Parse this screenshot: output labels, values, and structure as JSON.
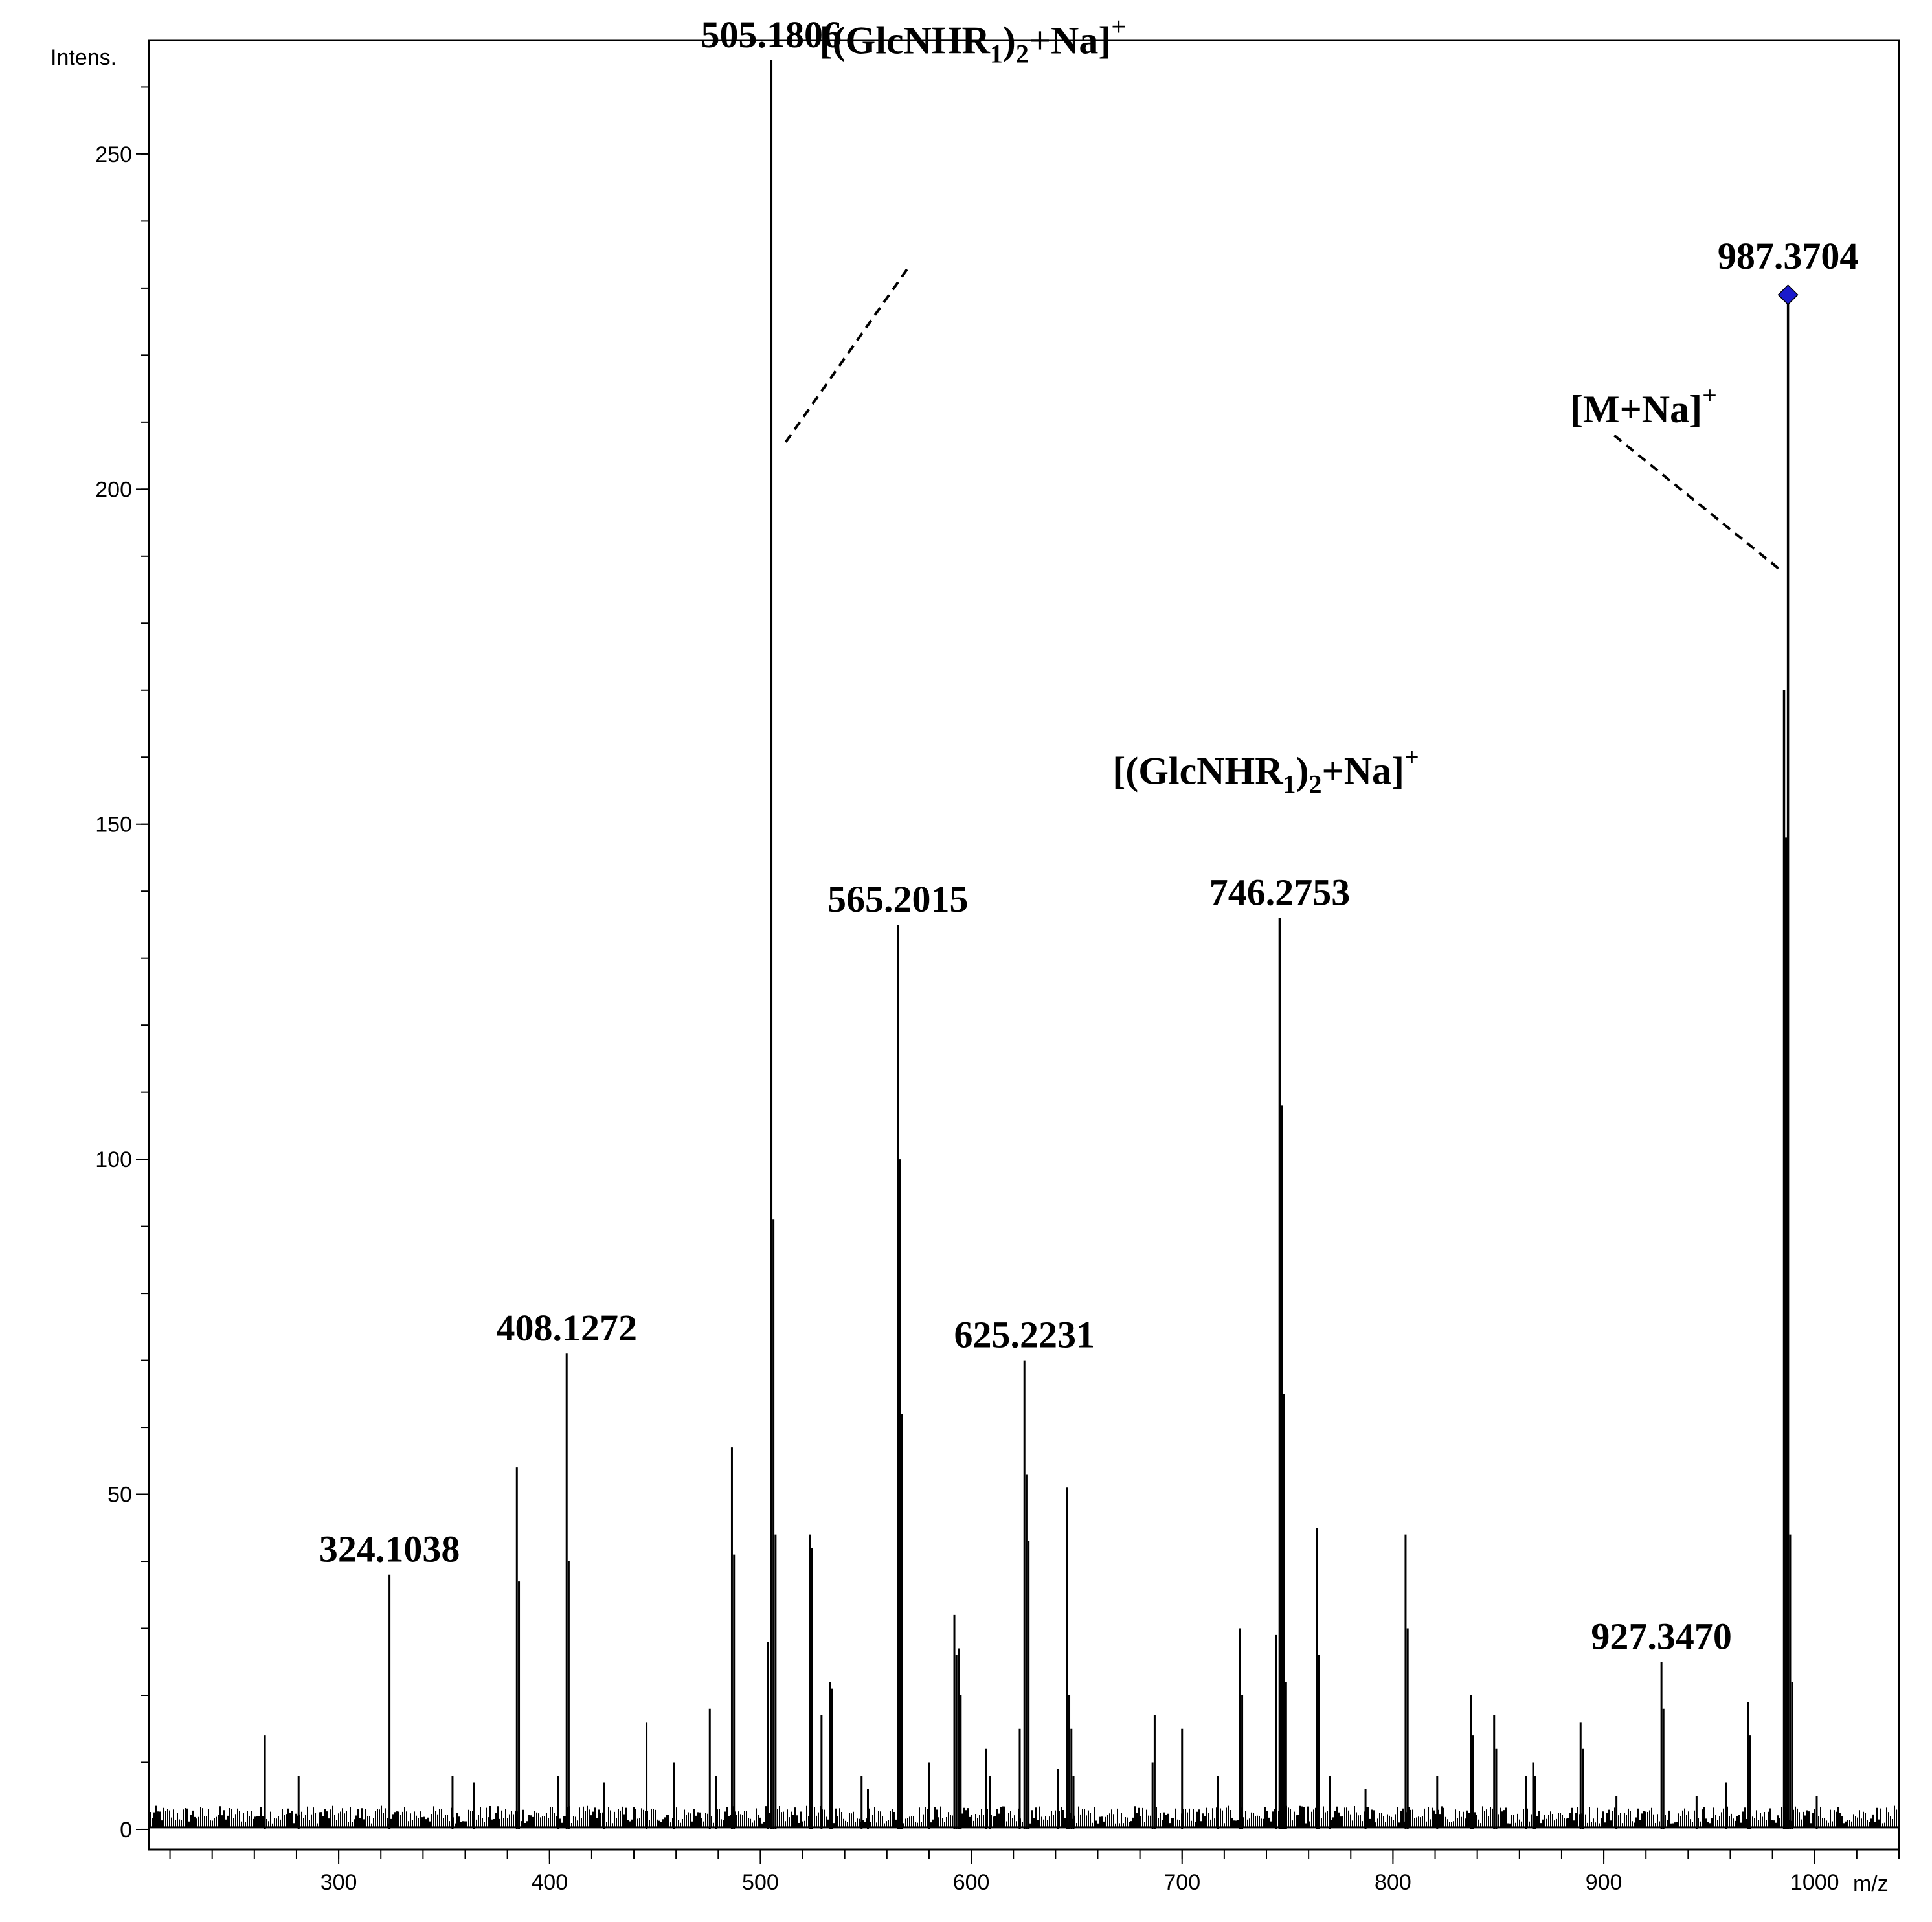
{
  "chart_data": {
    "type": "line",
    "title": "",
    "xlabel": "m/z",
    "ylabel": "Intens.",
    "xlim": [
      210,
      1040
    ],
    "ylim": [
      -3,
      267
    ],
    "x_ticks": [
      300,
      400,
      500,
      600,
      700,
      800,
      900,
      1000
    ],
    "x_minor_step": 20,
    "y_ticks": [
      0,
      50,
      100,
      150,
      200,
      250
    ],
    "y_minor_step": 10,
    "grid": false,
    "legend": "none",
    "line_color": "#000000",
    "marker_color": "#1a1acc",
    "noise_level": 2.2,
    "peaks": [
      {
        "mz": 265.0,
        "intensity": 14
      },
      {
        "mz": 281.0,
        "intensity": 8
      },
      {
        "mz": 324.1038,
        "intensity": 38,
        "label": "324.1038"
      },
      {
        "mz": 354.0,
        "intensity": 8
      },
      {
        "mz": 364.0,
        "intensity": 7
      },
      {
        "mz": 384.5,
        "intensity": 54
      },
      {
        "mz": 385.5,
        "intensity": 37
      },
      {
        "mz": 404.0,
        "intensity": 8
      },
      {
        "mz": 408.1272,
        "intensity": 71,
        "label": "408.1272"
      },
      {
        "mz": 409.1,
        "intensity": 40
      },
      {
        "mz": 426.0,
        "intensity": 7
      },
      {
        "mz": 446.0,
        "intensity": 16
      },
      {
        "mz": 459.0,
        "intensity": 10
      },
      {
        "mz": 476.0,
        "intensity": 18
      },
      {
        "mz": 479.0,
        "intensity": 8
      },
      {
        "mz": 486.5,
        "intensity": 57
      },
      {
        "mz": 487.5,
        "intensity": 41
      },
      {
        "mz": 503.5,
        "intensity": 28
      },
      {
        "mz": 505.1806,
        "intensity": 264,
        "label": "505.1806"
      },
      {
        "mz": 506.2,
        "intensity": 91
      },
      {
        "mz": 507.2,
        "intensity": 44
      },
      {
        "mz": 523.5,
        "intensity": 44
      },
      {
        "mz": 524.5,
        "intensity": 42
      },
      {
        "mz": 529.0,
        "intensity": 17
      },
      {
        "mz": 533.0,
        "intensity": 22
      },
      {
        "mz": 534.0,
        "intensity": 21
      },
      {
        "mz": 548.0,
        "intensity": 8
      },
      {
        "mz": 551.0,
        "intensity": 6
      },
      {
        "mz": 565.2015,
        "intensity": 135,
        "label": "565.2015"
      },
      {
        "mz": 566.2,
        "intensity": 100
      },
      {
        "mz": 567.2,
        "intensity": 62
      },
      {
        "mz": 580.0,
        "intensity": 10
      },
      {
        "mz": 592.0,
        "intensity": 32
      },
      {
        "mz": 593.0,
        "intensity": 26
      },
      {
        "mz": 594.0,
        "intensity": 27
      },
      {
        "mz": 595.0,
        "intensity": 20
      },
      {
        "mz": 607.0,
        "intensity": 12
      },
      {
        "mz": 609.0,
        "intensity": 8
      },
      {
        "mz": 623.0,
        "intensity": 15
      },
      {
        "mz": 625.2231,
        "intensity": 70,
        "label": "625.2231"
      },
      {
        "mz": 626.2,
        "intensity": 53
      },
      {
        "mz": 627.2,
        "intensity": 43
      },
      {
        "mz": 641.0,
        "intensity": 9
      },
      {
        "mz": 645.5,
        "intensity": 51
      },
      {
        "mz": 646.5,
        "intensity": 20
      },
      {
        "mz": 647.5,
        "intensity": 15
      },
      {
        "mz": 648.5,
        "intensity": 8
      },
      {
        "mz": 686.0,
        "intensity": 10
      },
      {
        "mz": 687.0,
        "intensity": 17
      },
      {
        "mz": 700.0,
        "intensity": 15
      },
      {
        "mz": 717.0,
        "intensity": 8
      },
      {
        "mz": 727.5,
        "intensity": 30
      },
      {
        "mz": 728.5,
        "intensity": 20
      },
      {
        "mz": 744.5,
        "intensity": 29
      },
      {
        "mz": 746.2753,
        "intensity": 136,
        "label": "746.2753"
      },
      {
        "mz": 747.3,
        "intensity": 108
      },
      {
        "mz": 748.3,
        "intensity": 65
      },
      {
        "mz": 749.3,
        "intensity": 22
      },
      {
        "mz": 764.0,
        "intensity": 45
      },
      {
        "mz": 765.0,
        "intensity": 26
      },
      {
        "mz": 770.0,
        "intensity": 8
      },
      {
        "mz": 787.0,
        "intensity": 6
      },
      {
        "mz": 806.0,
        "intensity": 44
      },
      {
        "mz": 807.0,
        "intensity": 30
      },
      {
        "mz": 821.0,
        "intensity": 8
      },
      {
        "mz": 837.0,
        "intensity": 20
      },
      {
        "mz": 838.0,
        "intensity": 14
      },
      {
        "mz": 848.0,
        "intensity": 17
      },
      {
        "mz": 849.0,
        "intensity": 12
      },
      {
        "mz": 863.0,
        "intensity": 8
      },
      {
        "mz": 866.5,
        "intensity": 10
      },
      {
        "mz": 867.5,
        "intensity": 8
      },
      {
        "mz": 889.0,
        "intensity": 16
      },
      {
        "mz": 890.0,
        "intensity": 12
      },
      {
        "mz": 906.0,
        "intensity": 5
      },
      {
        "mz": 927.347,
        "intensity": 25,
        "label": "927.3470"
      },
      {
        "mz": 928.3,
        "intensity": 18
      },
      {
        "mz": 944.0,
        "intensity": 5
      },
      {
        "mz": 958.0,
        "intensity": 7
      },
      {
        "mz": 968.5,
        "intensity": 19
      },
      {
        "mz": 969.5,
        "intensity": 14
      },
      {
        "mz": 985.5,
        "intensity": 170
      },
      {
        "mz": 986.5,
        "intensity": 148
      },
      {
        "mz": 987.3704,
        "intensity": 229,
        "label": "987.3704",
        "marker": "diamond"
      },
      {
        "mz": 988.4,
        "intensity": 44
      },
      {
        "mz": 989.4,
        "intensity": 22
      },
      {
        "mz": 1001.0,
        "intensity": 5
      }
    ],
    "annotations": [
      {
        "id": "ann1",
        "main": "[(GlcNHR",
        "sub1": "1",
        "mid": ")",
        "sub2": "2",
        "tail": "+Na]",
        "sup": "+",
        "anchor_mz": 528,
        "anchor_intensity": 265,
        "line": [
          [
            512,
            207
          ],
          [
            570,
            233
          ]
        ]
      },
      {
        "id": "ann2",
        "main": "[(GlcNHR",
        "sub1": "1",
        "mid": ")",
        "sub2": "2",
        "tail": "+Na]",
        "sup": "+",
        "anchor_mz": 667,
        "anchor_intensity": 156,
        "line": null
      },
      {
        "id": "ann3",
        "main": "[M+Na]",
        "sub1": "",
        "mid": "",
        "sub2": "",
        "tail": "",
        "sup": "+",
        "anchor_mz": 884,
        "anchor_intensity": 210,
        "line": [
          [
            905,
            208
          ],
          [
            983.5,
            188
          ]
        ]
      }
    ]
  }
}
